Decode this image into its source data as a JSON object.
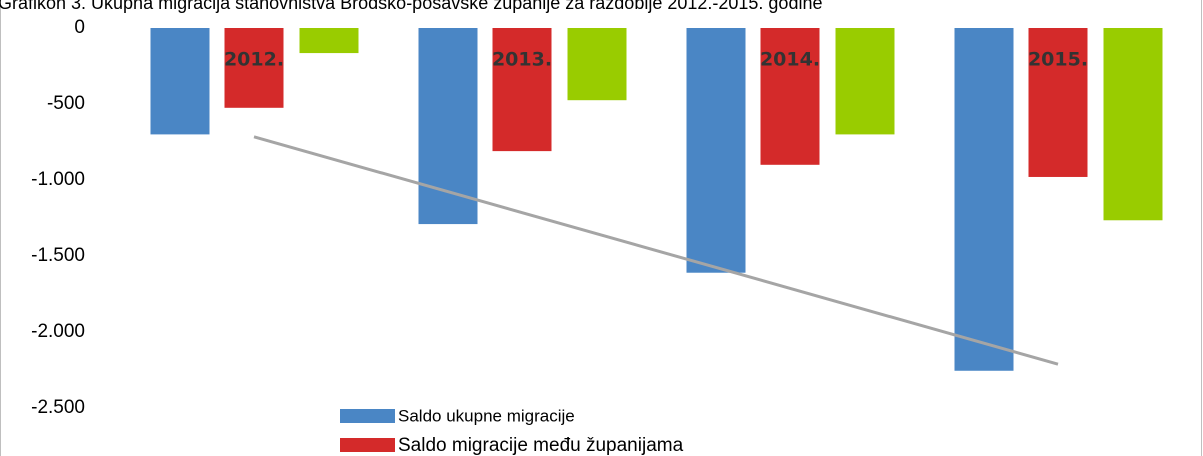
{
  "chart_data": {
    "type": "bar",
    "title": "Grafikon 3. Ukupna migracija stanovništva Brodsko-posavske županije za razdoblje 2012.-2015. godine",
    "categories": [
      "2012.",
      "2013.",
      "2014.",
      "2015."
    ],
    "series": [
      {
        "name": "Saldo ukupne migracije",
        "color": "#4a86c5",
        "values": [
          -700,
          -1290,
          -1610,
          -2255
        ]
      },
      {
        "name": "Saldo migracije među županijama",
        "color": "#d42a2a",
        "values": [
          -525,
          -810,
          -900,
          -980
        ]
      },
      {
        "color": "#99cc00",
        "values": [
          -165,
          -475,
          -700,
          -1265
        ]
      }
    ],
    "ylim": [
      -2500,
      0
    ],
    "yticks": [
      {
        "value": 0,
        "label": "0"
      },
      {
        "value": -500,
        "label": "-500"
      },
      {
        "value": -1000,
        "label": "-1.000"
      },
      {
        "value": -1500,
        "label": "-1.500"
      },
      {
        "value": -2000,
        "label": "-2.000"
      },
      {
        "value": -2500,
        "label": "-2.500"
      }
    ],
    "trendline_series": 0,
    "trendline_color": "#a5a5a5"
  }
}
